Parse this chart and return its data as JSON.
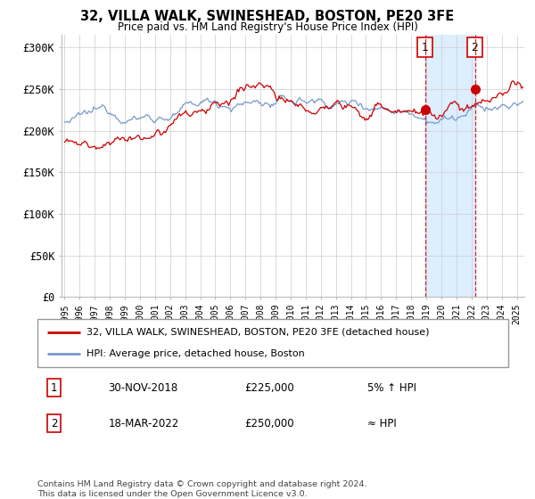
{
  "title": "32, VILLA WALK, SWINESHEAD, BOSTON, PE20 3FE",
  "subtitle": "Price paid vs. HM Land Registry's House Price Index (HPI)",
  "ylabel_ticks": [
    "£0",
    "£50K",
    "£100K",
    "£150K",
    "£200K",
    "£250K",
    "£300K"
  ],
  "ytick_values": [
    0,
    50000,
    100000,
    150000,
    200000,
    250000,
    300000
  ],
  "ylim": [
    0,
    315000
  ],
  "xlim_start": 1994.8,
  "xlim_end": 2025.5,
  "legend_label_red": "32, VILLA WALK, SWINESHEAD, BOSTON, PE20 3FE (detached house)",
  "legend_label_blue": "HPI: Average price, detached house, Boston",
  "annotation1_label": "1",
  "annotation1_date": "30-NOV-2018",
  "annotation1_price": "£225,000",
  "annotation1_hpi": "5% ↑ HPI",
  "annotation2_label": "2",
  "annotation2_date": "18-MAR-2022",
  "annotation2_price": "£250,000",
  "annotation2_hpi": "≈ HPI",
  "footnote": "Contains HM Land Registry data © Crown copyright and database right 2024.\nThis data is licensed under the Open Government Licence v3.0.",
  "red_color": "#cc0000",
  "blue_color": "#7799cc",
  "shade_color": "#ddeeff",
  "point1_x": 2018.92,
  "point1_y": 225000,
  "point2_x": 2022.22,
  "point2_y": 250000,
  "dashed_line1_x": 2018.92,
  "dashed_line2_x": 2022.22,
  "background_color": "#ffffff",
  "grid_color": "#cccccc"
}
